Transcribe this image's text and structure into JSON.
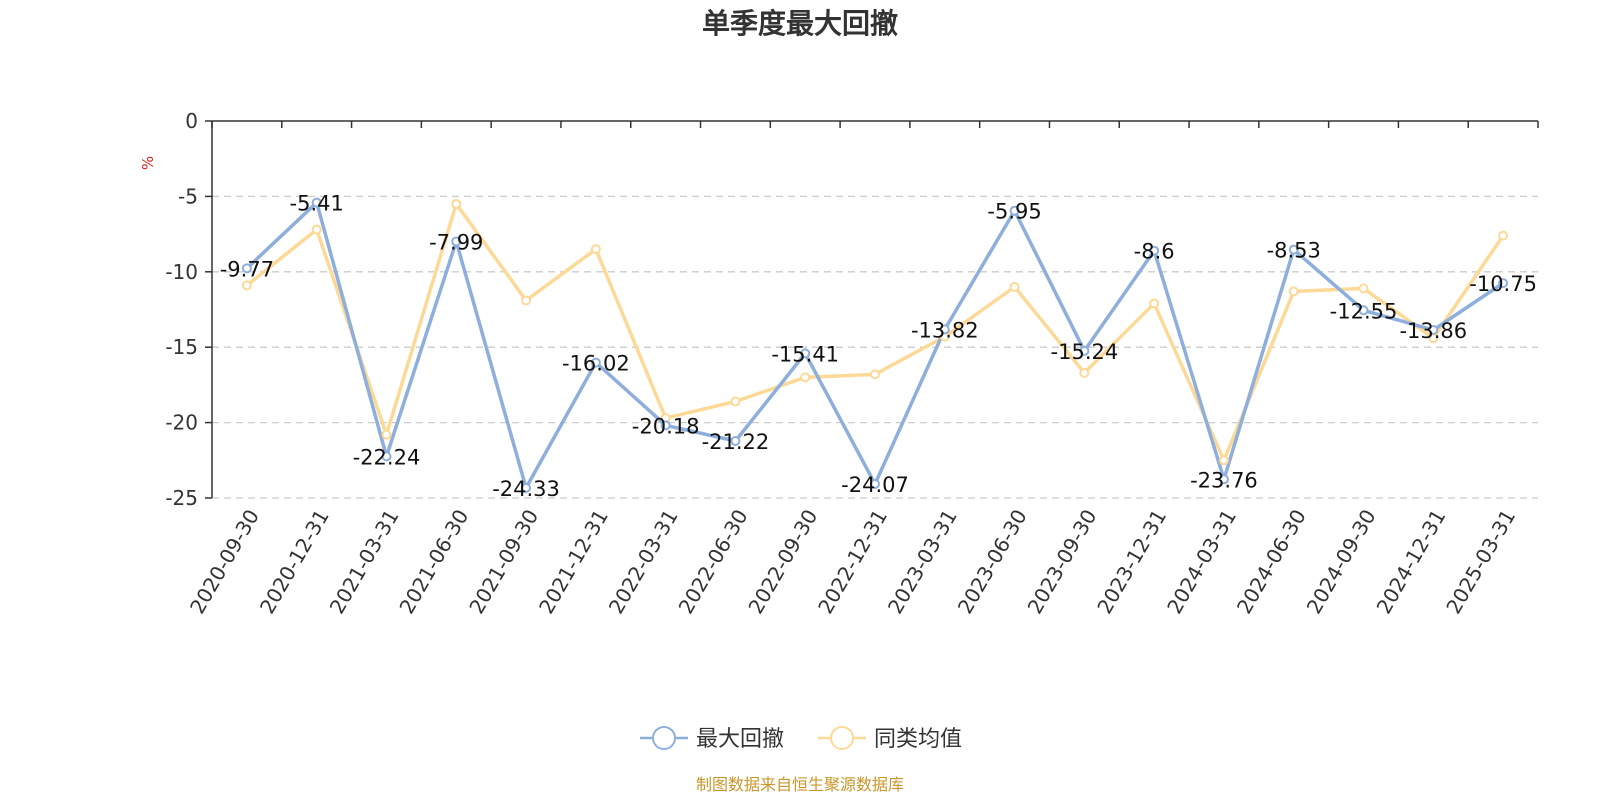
{
  "chart_data": {
    "type": "line",
    "title": "单季度最大回撤",
    "ylabel": "%",
    "ylim": [
      -25,
      0
    ],
    "yticks": [
      0,
      -5,
      -10,
      -15,
      -20,
      -25
    ],
    "grid": true,
    "legend_position": "bottom-center",
    "categories": [
      "2020-09-30",
      "2020-12-31",
      "2021-03-31",
      "2021-06-30",
      "2021-09-30",
      "2021-12-31",
      "2022-03-31",
      "2022-06-30",
      "2022-09-30",
      "2022-12-31",
      "2023-03-31",
      "2023-06-30",
      "2023-09-30",
      "2023-12-31",
      "2024-03-31",
      "2024-06-30",
      "2024-09-30",
      "2024-12-31",
      "2025-03-31"
    ],
    "series": [
      {
        "name": "最大回撤",
        "color": "#8eaedb",
        "show_labels": true,
        "values": [
          -9.77,
          -5.41,
          -22.24,
          -7.99,
          -24.33,
          -16.02,
          -20.18,
          -21.22,
          -15.41,
          -24.07,
          -13.82,
          -5.95,
          -15.24,
          -8.6,
          -23.76,
          -8.53,
          -12.55,
          -13.86,
          -10.75
        ]
      },
      {
        "name": "同类均值",
        "color": "#fdd998",
        "show_labels": false,
        "values": [
          -10.9,
          -7.2,
          -20.8,
          -5.5,
          -11.9,
          -8.5,
          -19.7,
          -18.6,
          -17.0,
          -16.8,
          -14.3,
          -11.0,
          -16.7,
          -12.1,
          -22.5,
          -11.3,
          -11.1,
          -14.4,
          -7.6
        ]
      }
    ],
    "source": "制图数据来自恒生聚源数据库",
    "source_color": "#c8962a",
    "axis_color": "#333333",
    "grid_color": "#cccccc"
  }
}
